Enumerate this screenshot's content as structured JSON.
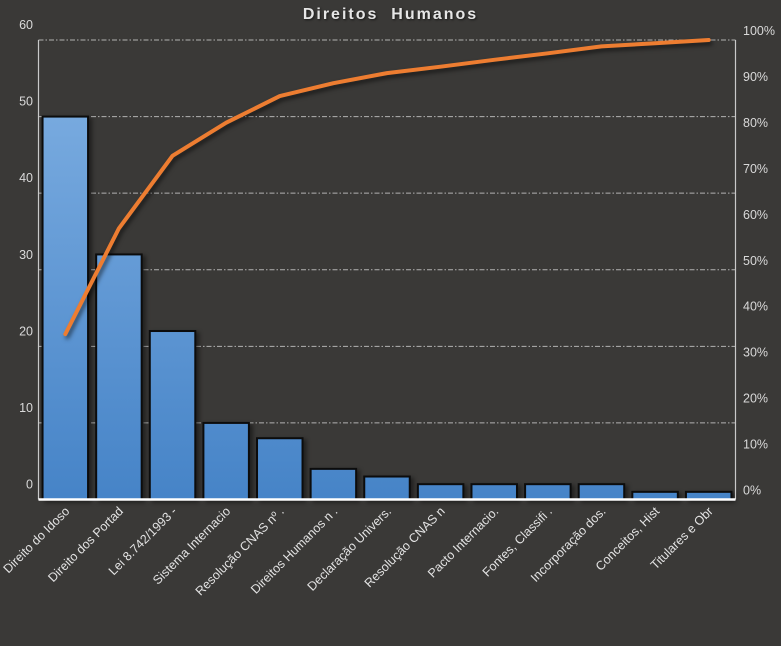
{
  "title": "Direitos  Humanos",
  "chart_data": {
    "type": "bar",
    "subtype": "pareto (bar + cumulative line)",
    "title": "Direitos  Humanos",
    "categories": [
      "Direito do Idoso",
      "Direito dos Portad",
      "Lei 8.742/1993 -",
      "Sistema Internacio",
      "Resolução CNAS nº .",
      "Direitos Humanos n .",
      "Declaração Univers.",
      "Resolução CNAS n",
      "Pacto Internacio.",
      "Fontes, Classifi .",
      "Incorporação dos.",
      "Conceitos, Hist",
      "Titulares e Obr"
    ],
    "series": [
      {
        "name": "frequency-bars",
        "type": "bar",
        "axis": "left",
        "values": [
          50,
          32,
          22,
          10,
          8,
          4,
          3,
          2,
          2,
          2,
          2,
          1,
          1
        ]
      },
      {
        "name": "cumulative-percent-line",
        "type": "line",
        "axis": "right",
        "values": [
          36.0,
          59.0,
          74.8,
          82.0,
          87.8,
          90.6,
          92.8,
          94.2,
          95.7,
          97.1,
          98.6,
          99.3,
          100.0
        ]
      }
    ],
    "left_axis": {
      "min": 0,
      "max": 60,
      "step": 10,
      "ticks": [
        "0",
        "10",
        "20",
        "30",
        "40",
        "50",
        "60"
      ]
    },
    "right_axis": {
      "min": 0,
      "max": 100,
      "step": 10,
      "ticks": [
        "0%",
        "10%",
        "20%",
        "30%",
        "40%",
        "50%",
        "60%",
        "70%",
        "80%",
        "90%",
        "100%"
      ]
    },
    "grid": "horizontal dash-dot lines at left-axis steps",
    "legend": "none",
    "category_label_rotation_deg": -45
  },
  "colors": {
    "background": "#3A3937",
    "bar_gradient_top": "#78AADF",
    "bar_gradient_bottom": "#4583C7",
    "bar_border": "#0C0C0C",
    "line_accent": "#ED7D31",
    "gridline": "#C8C8C8",
    "axis_side": "#C9C9C9",
    "axis_bottom": "#FFFFFF",
    "tick_text": "#D9D9D9",
    "category_text": "#E3E3E3",
    "title_text": "#E6E6E6"
  }
}
